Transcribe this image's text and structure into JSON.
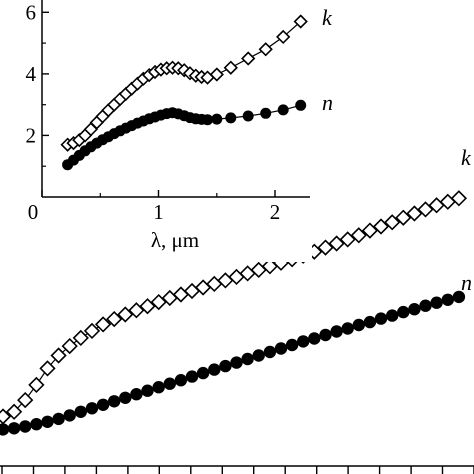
{
  "chart_data": [
    {
      "panel": "main",
      "type": "scatter",
      "title": "",
      "xlabel": "",
      "ylabel": "",
      "xlim": [
        0.2,
        2.3
      ],
      "ylim": [
        1.0,
        5.5
      ],
      "tick_count_x": 16,
      "series": [
        {
          "name": "k",
          "marker": "open-diamond",
          "color": "#000000",
          "x": [
            0.2,
            0.25,
            0.3,
            0.35,
            0.4,
            0.45,
            0.5,
            0.55,
            0.6,
            0.65,
            0.7,
            0.75,
            0.8,
            0.85,
            0.9,
            0.95,
            1.0,
            1.05,
            1.1,
            1.15,
            1.2,
            1.25,
            1.3,
            1.35,
            1.4,
            1.45,
            1.5,
            1.55,
            1.6,
            1.65,
            1.7,
            1.75,
            1.8,
            1.85,
            1.9,
            1.95,
            2.0,
            2.05,
            2.1,
            2.15,
            2.2,
            2.25
          ],
          "y": [
            1.4,
            1.48,
            1.68,
            1.94,
            2.22,
            2.44,
            2.6,
            2.74,
            2.86,
            2.97,
            3.06,
            3.14,
            3.21,
            3.28,
            3.35,
            3.42,
            3.48,
            3.54,
            3.6,
            3.66,
            3.72,
            3.78,
            3.84,
            3.9,
            3.96,
            4.02,
            4.08,
            4.14,
            4.21,
            4.28,
            4.35,
            4.42,
            4.49,
            4.57,
            4.64,
            4.71,
            4.79,
            4.86,
            4.93,
            5.0,
            5.06,
            5.12
          ]
        },
        {
          "name": "n",
          "marker": "filled-circle",
          "color": "#000000",
          "x": [
            0.2,
            0.25,
            0.3,
            0.35,
            0.4,
            0.45,
            0.5,
            0.55,
            0.6,
            0.65,
            0.7,
            0.75,
            0.8,
            0.85,
            0.9,
            0.95,
            1.0,
            1.05,
            1.1,
            1.15,
            1.2,
            1.25,
            1.3,
            1.35,
            1.4,
            1.45,
            1.5,
            1.55,
            1.6,
            1.65,
            1.7,
            1.75,
            1.8,
            1.85,
            1.9,
            1.95,
            2.0,
            2.05,
            2.1,
            2.15,
            2.2,
            2.25
          ],
          "y": [
            1.18,
            1.2,
            1.23,
            1.27,
            1.31,
            1.36,
            1.42,
            1.48,
            1.54,
            1.6,
            1.66,
            1.72,
            1.78,
            1.84,
            1.9,
            1.96,
            2.02,
            2.08,
            2.14,
            2.2,
            2.26,
            2.32,
            2.38,
            2.44,
            2.5,
            2.56,
            2.62,
            2.68,
            2.73,
            2.79,
            2.85,
            2.9,
            2.96,
            3.01,
            3.07,
            3.12,
            3.18,
            3.23,
            3.29,
            3.34,
            3.39,
            3.44
          ]
        }
      ],
      "annotations": [
        "k",
        "n"
      ]
    },
    {
      "panel": "inset",
      "type": "scatter",
      "title": "",
      "xlabel": "λ, μm",
      "ylabel": "",
      "xlim": [
        0,
        2.3
      ],
      "ylim": [
        0,
        6.4
      ],
      "xticks": [
        0,
        1,
        2
      ],
      "yticks": [
        2,
        4,
        6
      ],
      "x_tick_labels": [
        "0",
        "1",
        "2"
      ],
      "y_tick_labels": [
        "2",
        "4",
        "6"
      ],
      "series": [
        {
          "name": "k",
          "marker": "open-diamond",
          "color": "#000000",
          "x": [
            0.22,
            0.27,
            0.32,
            0.37,
            0.42,
            0.47,
            0.52,
            0.57,
            0.62,
            0.67,
            0.72,
            0.77,
            0.82,
            0.87,
            0.92,
            0.97,
            1.02,
            1.07,
            1.12,
            1.17,
            1.22,
            1.27,
            1.32,
            1.37,
            1.42,
            1.5,
            1.62,
            1.77,
            1.92,
            2.07,
            2.22
          ],
          "y": [
            1.7,
            1.75,
            1.85,
            2.0,
            2.2,
            2.42,
            2.62,
            2.82,
            3.0,
            3.18,
            3.35,
            3.52,
            3.68,
            3.84,
            3.96,
            4.06,
            4.14,
            4.18,
            4.2,
            4.18,
            4.12,
            4.02,
            3.94,
            3.9,
            3.88,
            3.98,
            4.2,
            4.5,
            4.8,
            5.2,
            5.7
          ]
        },
        {
          "name": "n",
          "marker": "filled-circle",
          "color": "#000000",
          "x": [
            0.22,
            0.27,
            0.32,
            0.37,
            0.42,
            0.47,
            0.52,
            0.57,
            0.62,
            0.67,
            0.72,
            0.77,
            0.82,
            0.87,
            0.92,
            0.97,
            1.02,
            1.07,
            1.12,
            1.17,
            1.22,
            1.27,
            1.32,
            1.37,
            1.42,
            1.5,
            1.62,
            1.77,
            1.92,
            2.07,
            2.22
          ],
          "y": [
            1.05,
            1.2,
            1.35,
            1.5,
            1.63,
            1.75,
            1.86,
            1.96,
            2.06,
            2.15,
            2.24,
            2.32,
            2.4,
            2.47,
            2.54,
            2.6,
            2.66,
            2.71,
            2.74,
            2.7,
            2.64,
            2.58,
            2.54,
            2.52,
            2.51,
            2.53,
            2.57,
            2.63,
            2.72,
            2.83,
            2.98
          ]
        }
      ],
      "annotations": [
        "k",
        "n"
      ]
    }
  ]
}
